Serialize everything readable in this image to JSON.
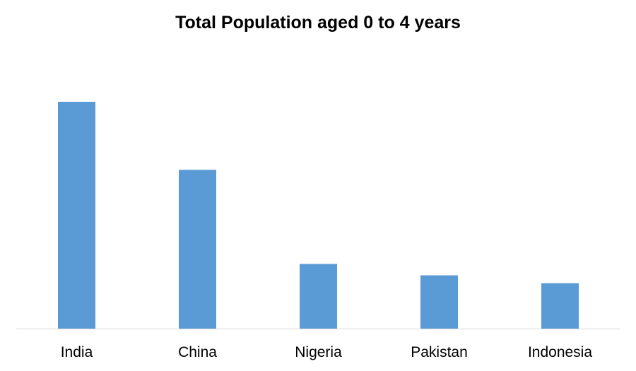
{
  "chart_data": {
    "type": "bar",
    "title": "Total Population aged 0 to 4 years",
    "xlabel": "",
    "ylabel": "",
    "categories": [
      "India",
      "China",
      "Nigeria",
      "Pakistan",
      "Indonesia"
    ],
    "values": [
      100,
      70,
      28.5,
      23.5,
      20
    ],
    "ylim": [
      0,
      100
    ],
    "grid": false,
    "legend": "none",
    "colors": {
      "bar": "#5B9BD5",
      "axis": "#D9D9D9",
      "text": "#000000"
    }
  }
}
